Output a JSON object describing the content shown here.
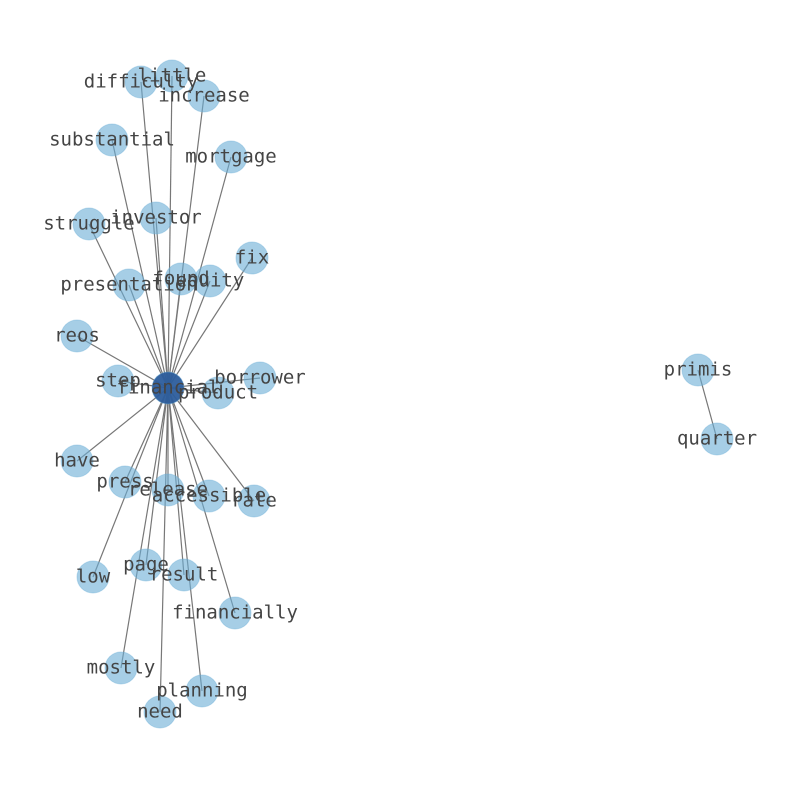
{
  "nodes": [
    {
      "label": "financial"
    },
    {
      "label": "little"
    },
    {
      "label": "difficulty"
    },
    {
      "label": "increase"
    },
    {
      "label": "substantial"
    },
    {
      "label": "mortgage"
    },
    {
      "label": "investor"
    },
    {
      "label": "struggle"
    },
    {
      "label": "fix"
    },
    {
      "label": "presentation"
    },
    {
      "label": "found"
    },
    {
      "label": "equity"
    },
    {
      "label": "reos"
    },
    {
      "label": "borrower"
    },
    {
      "label": "step"
    },
    {
      "label": "product"
    },
    {
      "label": "have"
    },
    {
      "label": "press"
    },
    {
      "label": "release"
    },
    {
      "label": "accessible"
    },
    {
      "label": "rate"
    },
    {
      "label": "low"
    },
    {
      "label": "page"
    },
    {
      "label": "result"
    },
    {
      "label": "financially"
    },
    {
      "label": "mostly"
    },
    {
      "label": "planning"
    },
    {
      "label": "need"
    },
    {
      "label": "primis"
    },
    {
      "label": "quarter"
    }
  ],
  "edges": [
    [
      "financial",
      "little"
    ],
    [
      "financial",
      "difficulty"
    ],
    [
      "financial",
      "increase"
    ],
    [
      "financial",
      "substantial"
    ],
    [
      "financial",
      "mortgage"
    ],
    [
      "financial",
      "investor"
    ],
    [
      "financial",
      "struggle"
    ],
    [
      "financial",
      "fix"
    ],
    [
      "financial",
      "presentation"
    ],
    [
      "financial",
      "found"
    ],
    [
      "financial",
      "equity"
    ],
    [
      "financial",
      "reos"
    ],
    [
      "financial",
      "borrower"
    ],
    [
      "financial",
      "step"
    ],
    [
      "financial",
      "product"
    ],
    [
      "financial",
      "have"
    ],
    [
      "financial",
      "press"
    ],
    [
      "financial",
      "release"
    ],
    [
      "financial",
      "accessible"
    ],
    [
      "financial",
      "rate"
    ],
    [
      "financial",
      "low"
    ],
    [
      "financial",
      "page"
    ],
    [
      "financial",
      "result"
    ],
    [
      "financial",
      "financially"
    ],
    [
      "financial",
      "mostly"
    ],
    [
      "financial",
      "planning"
    ],
    [
      "financial",
      "need"
    ],
    [
      "primis",
      "quarter"
    ]
  ]
}
